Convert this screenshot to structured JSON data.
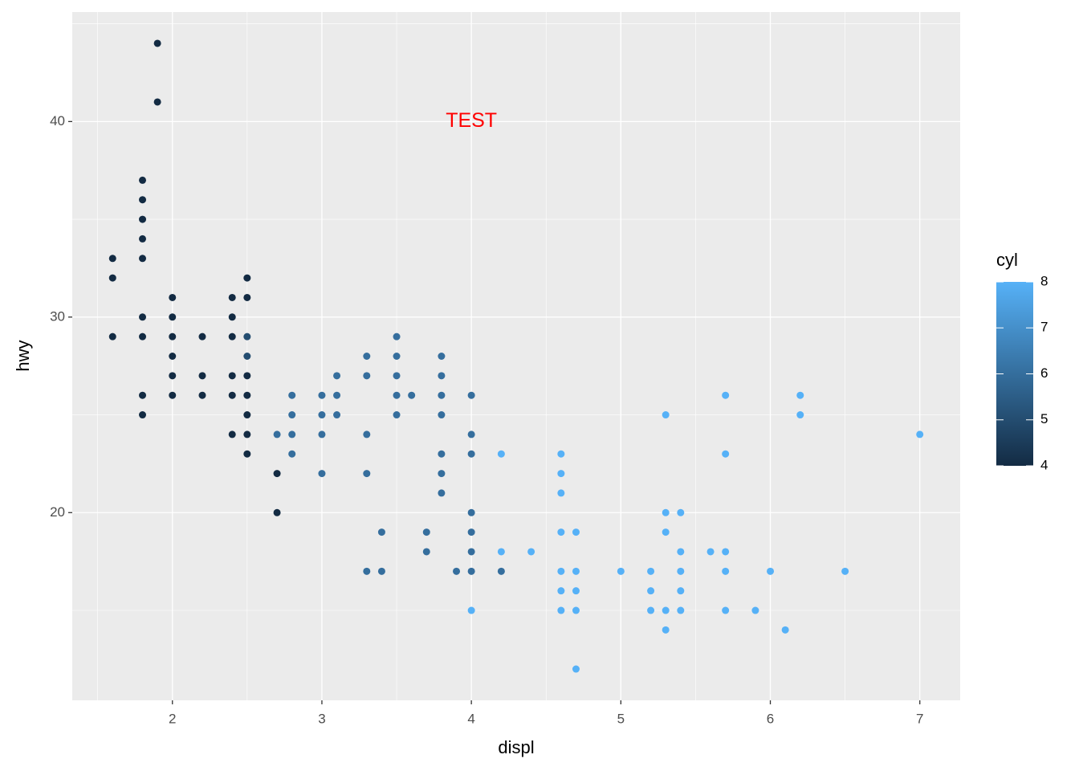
{
  "chart_data": {
    "type": "scatter",
    "xlabel": "displ",
    "ylabel": "hwy",
    "annotation": {
      "text": "TEST",
      "x": 4,
      "y": 40,
      "color": "#ff0000"
    },
    "x": [
      1.6,
      1.6,
      1.6,
      1.8,
      1.8,
      1.8,
      1.8,
      1.8,
      1.8,
      1.8,
      1.8,
      1.8,
      1.9,
      1.9,
      2.0,
      2.0,
      2.0,
      2.0,
      2.0,
      2.0,
      2.2,
      2.2,
      2.2,
      2.4,
      2.4,
      2.4,
      2.4,
      2.4,
      2.4,
      2.5,
      2.5,
      2.5,
      2.5,
      2.5,
      2.5,
      2.5,
      2.7,
      2.7,
      2.5,
      2.5,
      2.7,
      2.8,
      2.8,
      2.8,
      2.8,
      3.0,
      3.0,
      3.0,
      3.0,
      3.1,
      3.1,
      3.1,
      3.3,
      3.3,
      3.3,
      3.3,
      3.3,
      3.4,
      3.4,
      3.5,
      3.5,
      3.5,
      3.5,
      3.5,
      3.6,
      3.7,
      3.7,
      3.8,
      3.8,
      3.8,
      3.8,
      3.8,
      3.8,
      3.8,
      3.9,
      4.0,
      4.0,
      4.0,
      4.0,
      4.0,
      4.0,
      4.0,
      4.2,
      4.0,
      4.2,
      4.2,
      4.4,
      4.6,
      4.6,
      4.6,
      4.6,
      4.6,
      4.6,
      4.6,
      4.7,
      4.7,
      4.7,
      4.7,
      4.7,
      5.0,
      5.2,
      5.2,
      5.2,
      5.3,
      5.3,
      5.3,
      5.3,
      5.3,
      5.4,
      5.4,
      5.4,
      5.4,
      5.4,
      5.6,
      5.7,
      5.7,
      5.7,
      5.7,
      5.7,
      5.9,
      6.0,
      6.1,
      6.2,
      6.2,
      6.5,
      7.0
    ],
    "values": [
      33,
      32,
      29,
      37,
      36,
      35,
      34,
      33,
      30,
      29,
      26,
      25,
      44,
      41,
      31,
      30,
      29,
      28,
      27,
      26,
      29,
      27,
      26,
      31,
      30,
      29,
      27,
      26,
      24,
      32,
      31,
      27,
      26,
      25,
      24,
      23,
      22,
      20,
      29,
      28,
      24,
      26,
      25,
      24,
      23,
      26,
      25,
      24,
      22,
      27,
      26,
      25,
      28,
      27,
      24,
      22,
      17,
      19,
      17,
      29,
      28,
      27,
      26,
      25,
      26,
      19,
      18,
      28,
      27,
      26,
      25,
      23,
      22,
      21,
      17,
      26,
      24,
      23,
      20,
      19,
      18,
      17,
      17,
      15,
      23,
      18,
      18,
      23,
      22,
      21,
      19,
      17,
      16,
      15,
      19,
      17,
      16,
      15,
      12,
      17,
      17,
      16,
      15,
      25,
      20,
      19,
      15,
      14,
      20,
      18,
      17,
      16,
      15,
      18,
      26,
      23,
      18,
      17,
      15,
      15,
      17,
      14,
      26,
      25,
      17,
      24
    ],
    "cyl": [
      4,
      4,
      4,
      4,
      4,
      4,
      4,
      4,
      4,
      4,
      4,
      4,
      4,
      4,
      4,
      4,
      4,
      4,
      4,
      4,
      4,
      4,
      4,
      4,
      4,
      4,
      4,
      4,
      4,
      4,
      4,
      4,
      4,
      4,
      4,
      4,
      4,
      4,
      5,
      5,
      6,
      6,
      6,
      6,
      6,
      6,
      6,
      6,
      6,
      6,
      6,
      6,
      6,
      6,
      6,
      6,
      6,
      6,
      6,
      6,
      6,
      6,
      6,
      6,
      6,
      6,
      6,
      6,
      6,
      6,
      6,
      6,
      6,
      6,
      6,
      6,
      6,
      6,
      6,
      6,
      6,
      6,
      6,
      8,
      8,
      8,
      8,
      8,
      8,
      8,
      8,
      8,
      8,
      8,
      8,
      8,
      8,
      8,
      8,
      8,
      8,
      8,
      8,
      8,
      8,
      8,
      8,
      8,
      8,
      8,
      8,
      8,
      8,
      8,
      8,
      8,
      8,
      8,
      8,
      8,
      8,
      8,
      8,
      8,
      8,
      8
    ],
    "xlim": [
      1.33,
      7.27
    ],
    "ylim": [
      10.4,
      45.6
    ],
    "xticks": [
      2,
      3,
      4,
      5,
      6,
      7
    ],
    "yticks": [
      20,
      30,
      40
    ],
    "x_minor_ticks": [
      1.5,
      2.5,
      3.5,
      4.5,
      5.5,
      6.5
    ],
    "y_minor_ticks": [
      15,
      25,
      35,
      45
    ],
    "grid": true,
    "colorbar": {
      "title": "cyl",
      "limits": [
        4,
        8
      ],
      "ticks": [
        4,
        5,
        6,
        7,
        8
      ],
      "low": "#132B43",
      "high": "#56B1F7"
    }
  }
}
